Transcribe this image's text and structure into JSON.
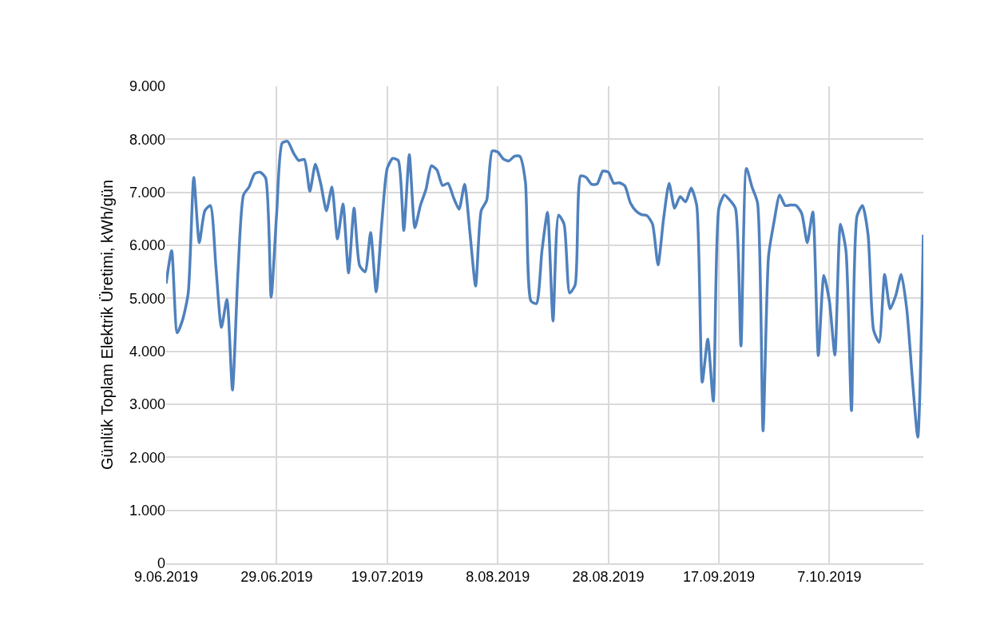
{
  "chart_data": {
    "type": "line",
    "ylabel": "Günlük Toplam Elektrik Üretimi, kWh/gün",
    "x": [
      "2019-06-09",
      "2019-06-10",
      "2019-06-11",
      "2019-06-12",
      "2019-06-13",
      "2019-06-14",
      "2019-06-15",
      "2019-06-16",
      "2019-06-17",
      "2019-06-18",
      "2019-06-19",
      "2019-06-20",
      "2019-06-21",
      "2019-06-22",
      "2019-06-23",
      "2019-06-24",
      "2019-06-25",
      "2019-06-26",
      "2019-06-27",
      "2019-06-28",
      "2019-06-29",
      "2019-06-30",
      "2019-07-01",
      "2019-07-02",
      "2019-07-03",
      "2019-07-04",
      "2019-07-05",
      "2019-07-06",
      "2019-07-07",
      "2019-07-08",
      "2019-07-09",
      "2019-07-10",
      "2019-07-11",
      "2019-07-12",
      "2019-07-13",
      "2019-07-14",
      "2019-07-15",
      "2019-07-16",
      "2019-07-17",
      "2019-07-18",
      "2019-07-19",
      "2019-07-20",
      "2019-07-21",
      "2019-07-22",
      "2019-07-23",
      "2019-07-24",
      "2019-07-25",
      "2019-07-26",
      "2019-07-27",
      "2019-07-28",
      "2019-07-29",
      "2019-07-30",
      "2019-07-31",
      "2019-08-01",
      "2019-08-02",
      "2019-08-03",
      "2019-08-04",
      "2019-08-05",
      "2019-08-06",
      "2019-08-07",
      "2019-08-08",
      "2019-08-09",
      "2019-08-10",
      "2019-08-11",
      "2019-08-12",
      "2019-08-13",
      "2019-08-14",
      "2019-08-15",
      "2019-08-16",
      "2019-08-17",
      "2019-08-18",
      "2019-08-19",
      "2019-08-20",
      "2019-08-21",
      "2019-08-22",
      "2019-08-23",
      "2019-08-24",
      "2019-08-25",
      "2019-08-26",
      "2019-08-27",
      "2019-08-28",
      "2019-08-29",
      "2019-08-30",
      "2019-08-31",
      "2019-09-01",
      "2019-09-02",
      "2019-09-03",
      "2019-09-04",
      "2019-09-05",
      "2019-09-06",
      "2019-09-07",
      "2019-09-08",
      "2019-09-09",
      "2019-09-10",
      "2019-09-11",
      "2019-09-12",
      "2019-09-13",
      "2019-09-14",
      "2019-09-15",
      "2019-09-16",
      "2019-09-17",
      "2019-09-18",
      "2019-09-19",
      "2019-09-20",
      "2019-09-21",
      "2019-09-22",
      "2019-09-23",
      "2019-09-24",
      "2019-09-25",
      "2019-09-26",
      "2019-09-27",
      "2019-09-28",
      "2019-09-29",
      "2019-09-30",
      "2019-10-01",
      "2019-10-02",
      "2019-10-03",
      "2019-10-04",
      "2019-10-05",
      "2019-10-06",
      "2019-10-07",
      "2019-10-08",
      "2019-10-09",
      "2019-10-10",
      "2019-10-11",
      "2019-10-12",
      "2019-10-13",
      "2019-10-14",
      "2019-10-15",
      "2019-10-16",
      "2019-10-17",
      "2019-10-18",
      "2019-10-19",
      "2019-10-20",
      "2019-10-21",
      "2019-10-22",
      "2019-10-23",
      "2019-10-24"
    ],
    "series": [
      {
        "color": "#4f81bd",
        "values": [
          5280,
          5900,
          4350,
          4600,
          5100,
          7280,
          6050,
          6650,
          6750,
          5600,
          4450,
          4980,
          3270,
          5500,
          6950,
          7100,
          7350,
          7380,
          7270,
          5020,
          6600,
          7930,
          7960,
          7750,
          7600,
          7620,
          7020,
          7530,
          7150,
          6650,
          7100,
          6120,
          6780,
          5480,
          6700,
          5620,
          5500,
          6240,
          5120,
          6400,
          7450,
          7640,
          7600,
          6280,
          7710,
          6330,
          6750,
          7050,
          7500,
          7420,
          7130,
          7170,
          6900,
          6680,
          7150,
          6200,
          5230,
          6650,
          6850,
          7780,
          7760,
          7630,
          7590,
          7680,
          7680,
          7200,
          4950,
          4900,
          5900,
          6620,
          4570,
          6570,
          6400,
          5100,
          5250,
          7310,
          7280,
          7150,
          7160,
          7400,
          7380,
          7170,
          7180,
          7120,
          6800,
          6650,
          6580,
          6560,
          6400,
          5630,
          6500,
          7170,
          6700,
          6920,
          6820,
          7080,
          6750,
          3420,
          4230,
          3060,
          6700,
          6950,
          6850,
          6700,
          4100,
          7450,
          7100,
          6800,
          2500,
          5800,
          6450,
          6950,
          6750,
          6760,
          6750,
          6600,
          6050,
          6630,
          3920,
          5430,
          4950,
          3930,
          6400,
          5900,
          2880,
          6550,
          6750,
          6200,
          4400,
          4170,
          5450,
          4800,
          5050,
          5450,
          4800,
          3500,
          2380,
          6200
        ]
      }
    ],
    "xlim": [
      "2019-06-09",
      "2019-10-24"
    ],
    "xticks": [
      {
        "value": "2019-06-09",
        "label": "9.06.2019"
      },
      {
        "value": "2019-06-29",
        "label": "29.06.2019"
      },
      {
        "value": "2019-07-19",
        "label": "19.07.2019"
      },
      {
        "value": "2019-08-08",
        "label": "8.08.2019"
      },
      {
        "value": "2019-08-28",
        "label": "28.08.2019"
      },
      {
        "value": "2019-09-17",
        "label": "17.09.2019"
      },
      {
        "value": "2019-10-07",
        "label": "7.10.2019"
      }
    ],
    "ylim": [
      0,
      9000
    ],
    "yticks": [
      0,
      {
        "value": 1000,
        "label": "1.000"
      },
      {
        "value": 2000,
        "label": "2.000"
      },
      {
        "value": 3000,
        "label": "3.000"
      },
      {
        "value": 4000,
        "label": "4.000"
      },
      {
        "value": 5000,
        "label": "5.000"
      },
      {
        "value": 6000,
        "label": "6.000"
      },
      {
        "value": 7000,
        "label": "7.000"
      },
      {
        "value": 8000,
        "label": "8.000"
      },
      {
        "value": 9000,
        "label": "9.000"
      }
    ],
    "grid": true,
    "line_style": "solid"
  }
}
